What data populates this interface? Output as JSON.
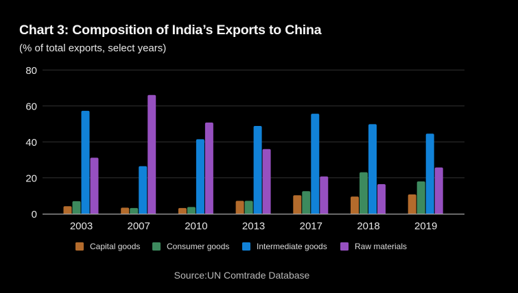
{
  "chart_data": {
    "type": "bar",
    "title": "Chart 3: Composition of India’s Exports to China",
    "subtitle": "(% of total exports, select years)",
    "xlabel": "",
    "ylabel": "",
    "categories": [
      "2003",
      "2007",
      "2010",
      "2013",
      "2017",
      "2018",
      "2019"
    ],
    "series": [
      {
        "name": "Capital goods",
        "color": "#B36B2C",
        "values": [
          4.2,
          3.4,
          3.2,
          7.2,
          10.3,
          9.6,
          10.8
        ]
      },
      {
        "name": "Consumer goods",
        "color": "#3D8A5E",
        "values": [
          7.0,
          3.2,
          3.8,
          7.2,
          12.6,
          23.1,
          18.0
        ]
      },
      {
        "name": "Intermediate goods",
        "color": "#1182D8",
        "values": [
          57.3,
          26.5,
          41.5,
          48.9,
          55.7,
          49.9,
          44.6
        ]
      },
      {
        "name": "Raw materials",
        "color": "#9650C0",
        "values": [
          31.2,
          66.1,
          50.8,
          36.0,
          20.8,
          16.5,
          25.8
        ]
      }
    ],
    "ylim": [
      0,
      80
    ],
    "yticks": [
      0,
      20,
      40,
      60,
      80
    ],
    "ytick_labels": [
      "0",
      "20",
      "40",
      "60",
      "80"
    ],
    "grid": true,
    "legend_position": "bottom",
    "source": "Source:UN Comtrade Database"
  },
  "colors": {
    "background": "#000000",
    "gridline": "#333333",
    "baseline": "#bdbdbd"
  }
}
